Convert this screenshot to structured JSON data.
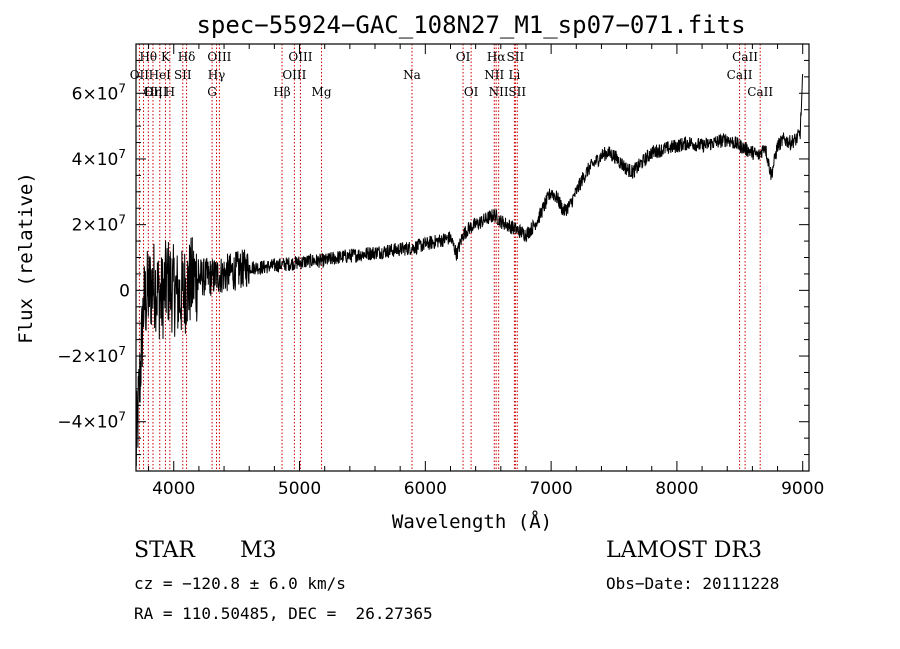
{
  "chart_data": {
    "type": "line",
    "title": "spec−55924−GAC_108N27_M1_sp07−071.fits",
    "xlabel": "Wavelength (Å)",
    "ylabel": "Flux (relative)",
    "xlim": [
      3700,
      9050
    ],
    "ylim": [
      -55000000,
      75000000
    ],
    "x_ticks": [
      4000,
      5000,
      6000,
      7000,
      8000,
      9000
    ],
    "x_tick_labels": [
      "4000",
      "5000",
      "6000",
      "7000",
      "8000",
      "9000"
    ],
    "y_ticks": [
      -40000000,
      -20000000,
      0,
      20000000,
      40000000,
      60000000
    ],
    "y_tick_labels": [
      {
        "base": "−4×10",
        "exp": "7"
      },
      {
        "base": "−2×10",
        "exp": "7"
      },
      {
        "base": "0",
        "exp": ""
      },
      {
        "base": "2×10",
        "exp": "7"
      },
      {
        "base": "4×10",
        "exp": "7"
      },
      {
        "base": "6×10",
        "exp": "7"
      }
    ],
    "series": [
      {
        "name": "flux",
        "x": [
          3700,
          3760,
          3800,
          3850,
          3900,
          3950,
          4000,
          4050,
          4100,
          4150,
          4200,
          4300,
          4400,
          4500,
          4600,
          4700,
          4800,
          4900,
          5000,
          5100,
          5200,
          5300,
          5400,
          5500,
          5600,
          5700,
          5800,
          5900,
          6000,
          6100,
          6200,
          6250,
          6300,
          6350,
          6400,
          6450,
          6500,
          6550,
          6600,
          6650,
          6700,
          6750,
          6800,
          6850,
          6900,
          6950,
          7000,
          7050,
          7100,
          7150,
          7200,
          7250,
          7300,
          7350,
          7400,
          7450,
          7500,
          7550,
          7600,
          7650,
          7700,
          7750,
          7800,
          7900,
          8000,
          8100,
          8200,
          8300,
          8400,
          8500,
          8600,
          8650,
          8700,
          8750,
          8800,
          8850,
          8900,
          8950,
          8980,
          9000
        ],
        "y": [
          -50000000,
          -5000000,
          0,
          2000000,
          -3000000,
          3000000,
          0,
          -2000000,
          1000000,
          3000000,
          4000000,
          4000000,
          5000000,
          6000000,
          7000000,
          7000000,
          7500000,
          8000000,
          8500000,
          9000000,
          9000000,
          10000000,
          10500000,
          11000000,
          11500000,
          12000000,
          12500000,
          13000000,
          14000000,
          15000000,
          16000000,
          11000000,
          17000000,
          19000000,
          20000000,
          21000000,
          22000000,
          23000000,
          21000000,
          20000000,
          19000000,
          18000000,
          17000000,
          19000000,
          22000000,
          26000000,
          30000000,
          28000000,
          24000000,
          26000000,
          30000000,
          34000000,
          37000000,
          39000000,
          41000000,
          42000000,
          41000000,
          39000000,
          37000000,
          36000000,
          38000000,
          40000000,
          42000000,
          43000000,
          44000000,
          45000000,
          44000000,
          45000000,
          46000000,
          44000000,
          42000000,
          41000000,
          44000000,
          35000000,
          44000000,
          46000000,
          45000000,
          46000000,
          48000000,
          65000000
        ]
      }
    ],
    "spectral_lines": [
      {
        "label": "Hθ",
        "wl": 3798,
        "row": 0,
        "anchor": "middle"
      },
      {
        "label": "OII",
        "wl": 3727,
        "row": 1,
        "anchor": "middle"
      },
      {
        "label": "OIII",
        "wl": 3760,
        "row": 2,
        "anchor": "start"
      },
      {
        "label": "Hη",
        "wl": 3835,
        "row": 2,
        "anchor": "middle"
      },
      {
        "label": "K",
        "wl": 3934,
        "row": 0,
        "anchor": "middle"
      },
      {
        "label": "HeI",
        "wl": 3889,
        "row": 1,
        "anchor": "middle"
      },
      {
        "label": "SII",
        "wl": 4072,
        "row": 1,
        "anchor": "middle"
      },
      {
        "label": "H",
        "wl": 3969,
        "row": 2,
        "anchor": "middle"
      },
      {
        "label": "Hδ",
        "wl": 4102,
        "row": 0,
        "anchor": "middle"
      },
      {
        "label": "OIII",
        "wl": 4363,
        "row": 0,
        "anchor": "middle"
      },
      {
        "label": "Hγ",
        "wl": 4340,
        "row": 1,
        "anchor": "middle"
      },
      {
        "label": "G",
        "wl": 4305,
        "row": 2,
        "anchor": "middle"
      },
      {
        "label": "Hβ",
        "wl": 4861,
        "row": 2,
        "anchor": "middle"
      },
      {
        "label": "OIII",
        "wl": 5007,
        "row": 0,
        "anchor": "middle"
      },
      {
        "label": "OIII",
        "wl": 4959,
        "row": 1,
        "anchor": "middle"
      },
      {
        "label": "Mg",
        "wl": 5175,
        "row": 2,
        "anchor": "middle"
      },
      {
        "label": "Na",
        "wl": 5894,
        "row": 1,
        "anchor": "middle"
      },
      {
        "label": "OI",
        "wl": 6300,
        "row": 0,
        "anchor": "middle"
      },
      {
        "label": "OI",
        "wl": 6364,
        "row": 2,
        "anchor": "middle"
      },
      {
        "label": "Hα",
        "wl": 6563,
        "row": 0,
        "anchor": "middle"
      },
      {
        "label": "SII",
        "wl": 6716,
        "row": 0,
        "anchor": "middle"
      },
      {
        "label": "NII",
        "wl": 6548,
        "row": 1,
        "anchor": "middle"
      },
      {
        "label": "Li",
        "wl": 6708,
        "row": 1,
        "anchor": "middle"
      },
      {
        "label": "NII",
        "wl": 6583,
        "row": 2,
        "anchor": "middle"
      },
      {
        "label": "SII",
        "wl": 6731,
        "row": 2,
        "anchor": "middle"
      },
      {
        "label": "CaII",
        "wl": 8542,
        "row": 0,
        "anchor": "middle"
      },
      {
        "label": "CaII",
        "wl": 8498,
        "row": 1,
        "anchor": "middle"
      },
      {
        "label": "CaII",
        "wl": 8662,
        "row": 2,
        "anchor": "middle"
      }
    ],
    "colors": {
      "lines": "#cc0000",
      "spectrum": "#000000"
    }
  },
  "info": {
    "object_class": "STAR",
    "subclass": "M3",
    "survey": "LAMOST DR3",
    "cz": "cz = −120.8 ± 6.0 km/s",
    "obs_date": "Obs−Date: 20111228",
    "coords": "RA = 110.50485, DEC =  26.27365"
  }
}
